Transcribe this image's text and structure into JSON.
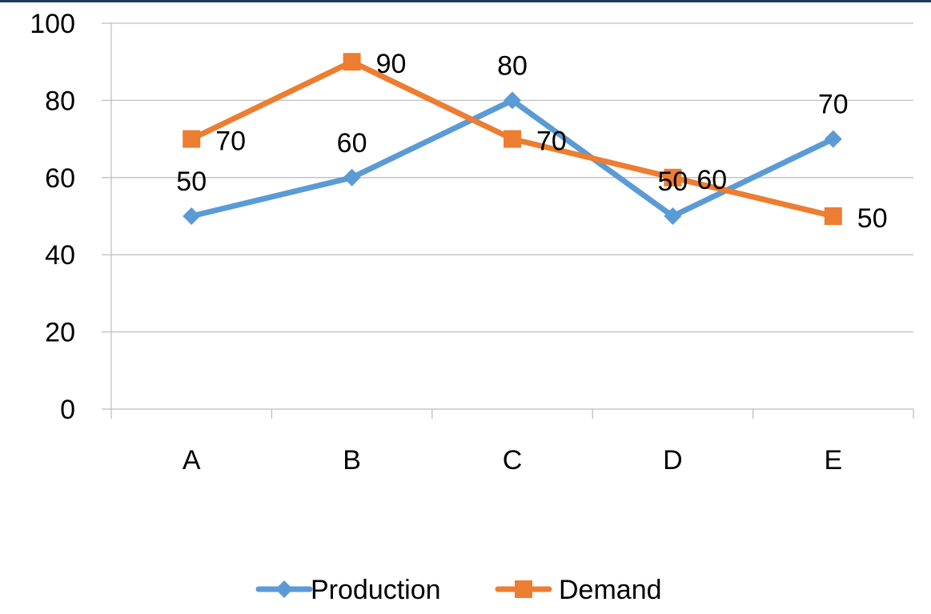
{
  "chart_data": {
    "type": "line",
    "title": "",
    "xlabel": "",
    "ylabel": "",
    "categories": [
      "A",
      "B",
      "C",
      "D",
      "E"
    ],
    "ylim": [
      0,
      100
    ],
    "yticks": [
      0,
      20,
      40,
      60,
      80,
      100
    ],
    "grid": true,
    "legend": "bottom",
    "series": [
      {
        "name": "Production",
        "values": [
          50,
          60,
          80,
          50,
          70
        ],
        "color": "#5b9bd5",
        "marker": "diamond",
        "labels": [
          "50",
          "60",
          "80",
          "50",
          "70"
        ]
      },
      {
        "name": "Demand",
        "values": [
          70,
          90,
          70,
          60,
          50
        ],
        "color": "#ed7d31",
        "marker": "square",
        "labels": [
          "70",
          "90",
          "70",
          "60",
          "50"
        ]
      }
    ]
  }
}
